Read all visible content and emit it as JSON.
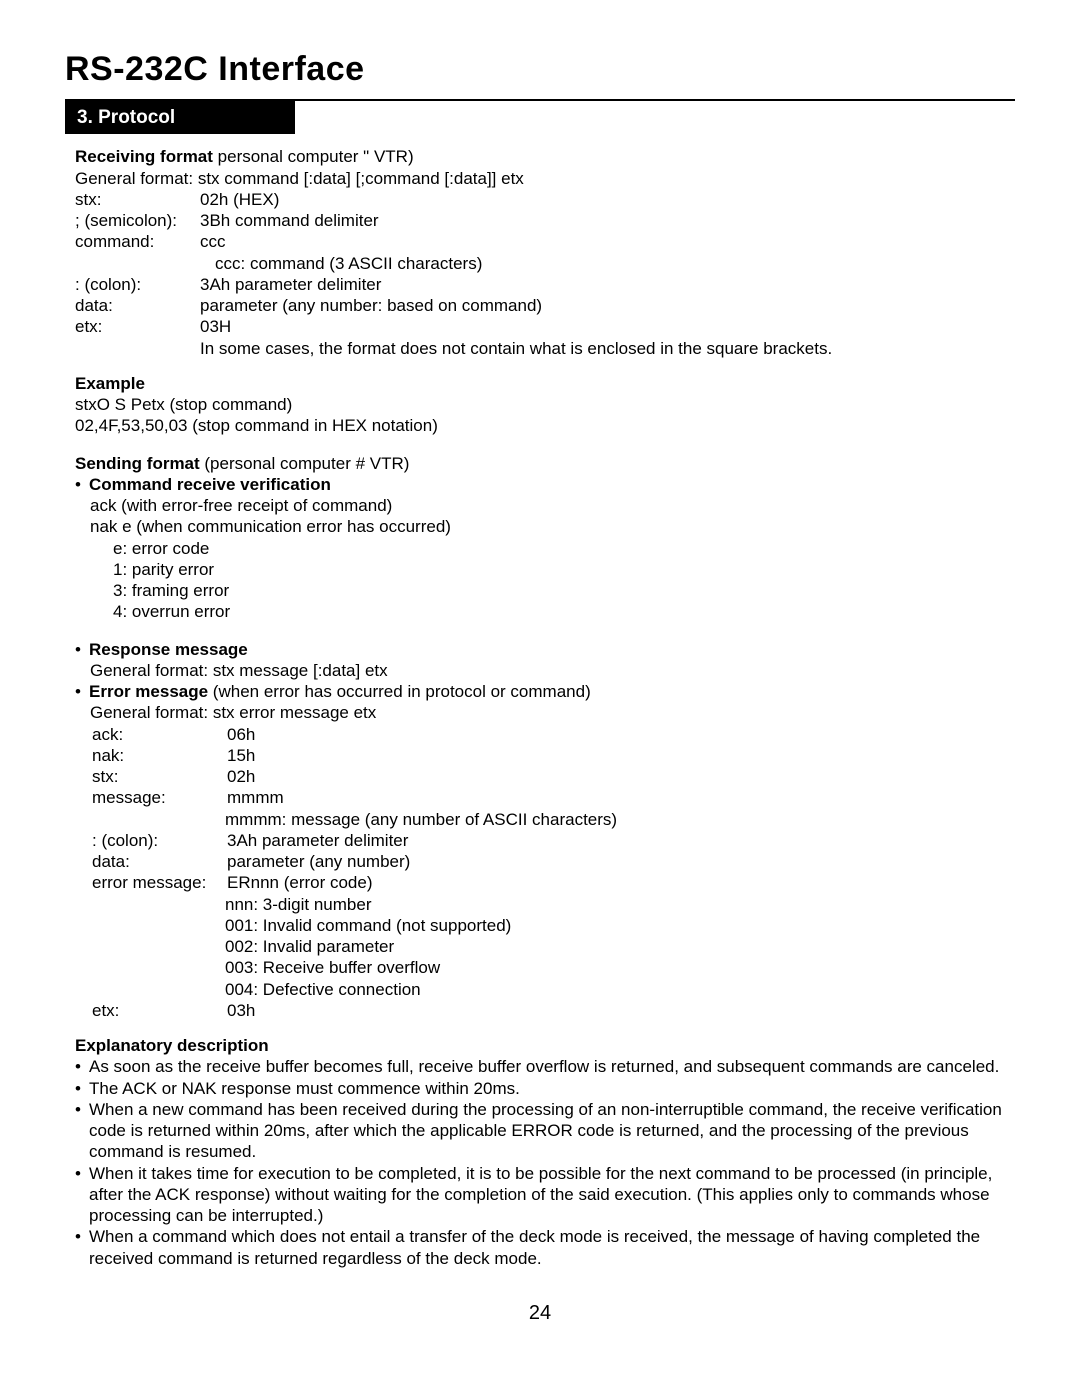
{
  "title": "RS-232C Interface",
  "section_number": "3. Protocol",
  "receiving": {
    "heading_bold": "Receiving format",
    "heading_rest": " personal computer \"   VTR)",
    "general": "General format: stx command [:data] [;command [:data]] etx",
    "items": [
      {
        "label": "stx:",
        "value": "02h (HEX)"
      },
      {
        "label": "; (semicolon):",
        "value": "3Bh command delimiter"
      },
      {
        "label": "command:",
        "value": "ccc"
      }
    ],
    "ccc_note": "ccc: command (3 ASCII characters)",
    "items2": [
      {
        "label": ": (colon):",
        "value": "3Ah parameter delimiter"
      },
      {
        "label": "data:",
        "value": "parameter (any number: based on command)"
      },
      {
        "label": "etx:",
        "value": "03H"
      }
    ],
    "etx_note": "In some cases, the format does not contain what is enclosed in the square brackets."
  },
  "example": {
    "heading": "Example",
    "line1": "stxO S Petx (stop command)",
    "line2": "02,4F,53,50,03 (stop command in HEX notation)"
  },
  "sending": {
    "heading_bold": "Sending format",
    "heading_rest": " (personal computer #   VTR)",
    "crv_heading": "Command receive verification",
    "crv_ack": "ack (with error-free receipt of command)",
    "crv_nak": "nak e (when communication error has occurred)",
    "errcodes": [
      "e: error code",
      "1: parity error",
      "3: framing error",
      "4: overrun error"
    ],
    "resp_heading": "Response message",
    "resp_general": "General format: stx message [:data] etx",
    "err_heading_bold": "Error message",
    "err_heading_rest": " (when error has occurred in protocol or command)",
    "err_general": "General format: stx error message etx",
    "codes": [
      {
        "label": "ack:",
        "value": "06h"
      },
      {
        "label": "nak:",
        "value": "15h"
      },
      {
        "label": "stx:",
        "value": "02h"
      },
      {
        "label": "message:",
        "value": "mmmm"
      }
    ],
    "mmmm_note": "mmmm: message (any number of ASCII characters)",
    "codes2": [
      {
        "label": ": (colon):",
        "value": "3Ah parameter delimiter"
      },
      {
        "label": "data:",
        "value": "parameter (any number)"
      },
      {
        "label": "error message:",
        "value": "ERnnn (error code)"
      }
    ],
    "nnn_notes": [
      "nnn: 3-digit number",
      "001: Invalid command (not supported)",
      "002: Invalid parameter",
      "003: Receive buffer overflow",
      "004: Defective connection"
    ],
    "etx": {
      "label": "etx:",
      "value": "03h"
    }
  },
  "explain": {
    "heading": "Explanatory description",
    "bullets": [
      "As soon as the receive buffer becomes full, receive buffer overflow is returned, and subsequent commands are canceled.",
      "The ACK or NAK response must commence within 20ms.",
      "When a new command has been received during the processing of an non-interruptible command, the receive verification code is returned within 20ms, after which the applicable ERROR code is returned, and the processing of the previous command is resumed.",
      "When it takes time for execution to be completed, it is to be possible for the next command to be processed (in principle, after the ACK response) without waiting for the completion of the said execution. (This applies only to commands whose processing can be interrupted.)",
      "When a command which does not entail a transfer of the deck mode is received, the message of having completed the received command is returned regardless of the deck mode."
    ]
  },
  "page_number": "24"
}
